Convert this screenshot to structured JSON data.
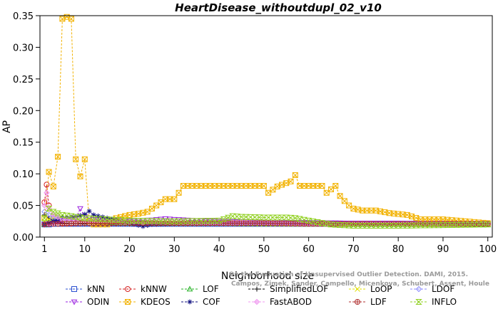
{
  "chart_data": {
    "type": "line",
    "title": "HeartDisease_withoutdupl_02_v10",
    "xlabel": "Neighborhood size",
    "ylabel": "AP",
    "xlim": [
      0,
      101
    ],
    "ylim": [
      0,
      0.35
    ],
    "xticks": [
      "1",
      "10",
      "20",
      "30",
      "40",
      "50",
      "60",
      "70",
      "80",
      "90",
      "100"
    ],
    "yticks": [
      "0.00",
      "0.05",
      "0.10",
      "0.15",
      "0.20",
      "0.25",
      "0.30",
      "0.35"
    ],
    "grid": false,
    "legend_position": "bottom",
    "credit_lines": [
      "Campos, Zimek, Sander, Campello, Micenkova, Schubert, Assent, Houle",
      "On the Evaluation of Unsupervised Outlier Detection. DAMI, 2015."
    ],
    "series": [
      {
        "name": "kNN",
        "color": "#2a4fd0",
        "marker": "square",
        "points": [
          [
            1,
            0.02
          ],
          [
            2,
            0.02
          ],
          [
            3,
            0.021
          ],
          [
            5,
            0.021
          ],
          [
            10,
            0.021
          ],
          [
            20,
            0.021
          ],
          [
            30,
            0.021
          ],
          [
            40,
            0.021
          ],
          [
            50,
            0.021
          ],
          [
            60,
            0.021
          ],
          [
            70,
            0.021
          ],
          [
            80,
            0.021
          ],
          [
            90,
            0.021
          ],
          [
            100,
            0.021
          ]
        ]
      },
      {
        "name": "kNNW",
        "color": "#d42020",
        "marker": "circle",
        "points": [
          [
            1,
            0.055
          ],
          [
            1.5,
            0.083
          ],
          [
            2,
            0.05
          ],
          [
            3,
            0.03
          ],
          [
            4,
            0.025
          ],
          [
            5,
            0.022
          ],
          [
            8,
            0.022
          ],
          [
            10,
            0.022
          ],
          [
            20,
            0.022
          ],
          [
            30,
            0.022
          ],
          [
            40,
            0.022
          ],
          [
            50,
            0.022
          ],
          [
            60,
            0.021
          ],
          [
            70,
            0.021
          ],
          [
            80,
            0.021
          ],
          [
            90,
            0.021
          ],
          [
            100,
            0.021
          ]
        ]
      },
      {
        "name": "LOF",
        "color": "#22b022",
        "marker": "triangle",
        "points": [
          [
            1,
            0.02
          ],
          [
            2,
            0.025
          ],
          [
            3,
            0.028
          ],
          [
            5,
            0.03
          ],
          [
            8,
            0.028
          ],
          [
            10,
            0.025
          ],
          [
            15,
            0.023
          ],
          [
            20,
            0.022
          ],
          [
            30,
            0.022
          ],
          [
            40,
            0.022
          ],
          [
            50,
            0.021
          ],
          [
            60,
            0.021
          ],
          [
            70,
            0.02
          ],
          [
            80,
            0.02
          ],
          [
            90,
            0.02
          ],
          [
            100,
            0.02
          ]
        ]
      },
      {
        "name": "SimplifiedLOF",
        "color": "#000000",
        "marker": "plus",
        "points": [
          [
            1,
            0.035
          ],
          [
            2,
            0.03
          ],
          [
            3,
            0.025
          ],
          [
            5,
            0.022
          ],
          [
            10,
            0.021
          ],
          [
            20,
            0.021
          ],
          [
            30,
            0.021
          ],
          [
            40,
            0.021
          ],
          [
            50,
            0.021
          ],
          [
            60,
            0.021
          ],
          [
            70,
            0.021
          ],
          [
            80,
            0.021
          ],
          [
            90,
            0.021
          ],
          [
            100,
            0.021
          ]
        ]
      },
      {
        "name": "LoOP",
        "color": "#e0e000",
        "marker": "cross",
        "points": [
          [
            1,
            0.025
          ],
          [
            2,
            0.028
          ],
          [
            3,
            0.03
          ],
          [
            5,
            0.028
          ],
          [
            10,
            0.025
          ],
          [
            20,
            0.023
          ],
          [
            30,
            0.022
          ],
          [
            40,
            0.022
          ],
          [
            50,
            0.021
          ],
          [
            60,
            0.021
          ],
          [
            70,
            0.021
          ],
          [
            80,
            0.021
          ],
          [
            90,
            0.021
          ],
          [
            100,
            0.021
          ]
        ]
      },
      {
        "name": "LDOF",
        "color": "#8888ff",
        "marker": "diamond",
        "points": [
          [
            1,
            0.04
          ],
          [
            2,
            0.035
          ],
          [
            3,
            0.03
          ],
          [
            5,
            0.028
          ],
          [
            10,
            0.025
          ],
          [
            20,
            0.024
          ],
          [
            30,
            0.023
          ],
          [
            40,
            0.022
          ],
          [
            50,
            0.022
          ],
          [
            60,
            0.022
          ],
          [
            70,
            0.021
          ],
          [
            80,
            0.021
          ],
          [
            90,
            0.021
          ],
          [
            100,
            0.021
          ]
        ]
      },
      {
        "name": "ODIN",
        "color": "#9a20e0",
        "marker": "triangle-down",
        "points": [
          [
            1,
            0.02
          ],
          [
            3,
            0.022
          ],
          [
            5,
            0.025
          ],
          [
            8,
            0.03
          ],
          [
            9,
            0.045
          ],
          [
            10,
            0.032
          ],
          [
            12,
            0.028
          ],
          [
            15,
            0.027
          ],
          [
            20,
            0.026
          ],
          [
            25,
            0.027
          ],
          [
            28,
            0.029
          ],
          [
            30,
            0.028
          ],
          [
            35,
            0.026
          ],
          [
            40,
            0.025
          ],
          [
            50,
            0.024
          ],
          [
            60,
            0.023
          ],
          [
            70,
            0.022
          ],
          [
            80,
            0.022
          ],
          [
            90,
            0.021
          ],
          [
            100,
            0.021
          ]
        ]
      },
      {
        "name": "KDEOS",
        "color": "#f2b200",
        "marker": "square-x",
        "points": [
          [
            1,
            0.03
          ],
          [
            2,
            0.103
          ],
          [
            3,
            0.08
          ],
          [
            4,
            0.127
          ],
          [
            5,
            0.345
          ],
          [
            6,
            0.348
          ],
          [
            7,
            0.345
          ],
          [
            8,
            0.123
          ],
          [
            9,
            0.096
          ],
          [
            10,
            0.123
          ],
          [
            11,
            0.025
          ],
          [
            12,
            0.02
          ],
          [
            15,
            0.02
          ],
          [
            17,
            0.03
          ],
          [
            20,
            0.035
          ],
          [
            22,
            0.037
          ],
          [
            24,
            0.04
          ],
          [
            26,
            0.05
          ],
          [
            28,
            0.06
          ],
          [
            30,
            0.06
          ],
          [
            31,
            0.07
          ],
          [
            32,
            0.081
          ],
          [
            35,
            0.081
          ],
          [
            40,
            0.081
          ],
          [
            45,
            0.081
          ],
          [
            50,
            0.081
          ],
          [
            51,
            0.07
          ],
          [
            53,
            0.08
          ],
          [
            56,
            0.088
          ],
          [
            57,
            0.098
          ],
          [
            58,
            0.081
          ],
          [
            60,
            0.081
          ],
          [
            63,
            0.081
          ],
          [
            64,
            0.07
          ],
          [
            66,
            0.081
          ],
          [
            67,
            0.065
          ],
          [
            68,
            0.057
          ],
          [
            69,
            0.05
          ],
          [
            70,
            0.045
          ],
          [
            72,
            0.042
          ],
          [
            75,
            0.042
          ],
          [
            78,
            0.038
          ],
          [
            82,
            0.035
          ],
          [
            85,
            0.028
          ],
          [
            90,
            0.028
          ],
          [
            95,
            0.025
          ],
          [
            100,
            0.022
          ]
        ]
      },
      {
        "name": "COF",
        "color": "#101080",
        "marker": "asterisk",
        "points": [
          [
            1,
            0.02
          ],
          [
            3,
            0.025
          ],
          [
            5,
            0.03
          ],
          [
            8,
            0.032
          ],
          [
            10,
            0.036
          ],
          [
            11,
            0.041
          ],
          [
            12,
            0.035
          ],
          [
            15,
            0.03
          ],
          [
            18,
            0.025
          ],
          [
            20,
            0.022
          ],
          [
            23,
            0.017
          ],
          [
            25,
            0.02
          ],
          [
            30,
            0.021
          ],
          [
            40,
            0.021
          ],
          [
            50,
            0.021
          ],
          [
            60,
            0.021
          ],
          [
            70,
            0.021
          ],
          [
            80,
            0.021
          ],
          [
            90,
            0.021
          ],
          [
            100,
            0.021
          ]
        ]
      },
      {
        "name": "FastABOD",
        "color": "#f09af0",
        "marker": "diamond-fill",
        "points": [
          [
            1,
            0.05
          ],
          [
            1.5,
            0.07
          ],
          [
            2,
            0.045
          ],
          [
            3,
            0.035
          ],
          [
            5,
            0.028
          ],
          [
            10,
            0.025
          ],
          [
            20,
            0.024
          ],
          [
            30,
            0.023
          ],
          [
            40,
            0.022
          ],
          [
            50,
            0.022
          ],
          [
            60,
            0.021
          ],
          [
            70,
            0.021
          ],
          [
            80,
            0.021
          ],
          [
            90,
            0.021
          ],
          [
            100,
            0.021
          ]
        ]
      },
      {
        "name": "LDF",
        "color": "#b03030",
        "marker": "circle-plus",
        "points": [
          [
            1,
            0.02
          ],
          [
            3,
            0.021
          ],
          [
            5,
            0.021
          ],
          [
            10,
            0.022
          ],
          [
            20,
            0.022
          ],
          [
            30,
            0.022
          ],
          [
            40,
            0.022
          ],
          [
            50,
            0.022
          ],
          [
            60,
            0.021
          ],
          [
            70,
            0.021
          ],
          [
            80,
            0.021
          ],
          [
            90,
            0.021
          ],
          [
            100,
            0.021
          ]
        ]
      },
      {
        "name": "INFLO",
        "color": "#90d020",
        "marker": "hourglass",
        "points": [
          [
            1,
            0.03
          ],
          [
            2,
            0.045
          ],
          [
            3,
            0.04
          ],
          [
            5,
            0.035
          ],
          [
            8,
            0.032
          ],
          [
            10,
            0.03
          ],
          [
            15,
            0.028
          ],
          [
            20,
            0.026
          ],
          [
            30,
            0.025
          ],
          [
            40,
            0.026
          ],
          [
            43,
            0.033
          ],
          [
            45,
            0.032
          ],
          [
            50,
            0.031
          ],
          [
            55,
            0.031
          ],
          [
            57,
            0.03
          ],
          [
            60,
            0.026
          ],
          [
            65,
            0.02
          ],
          [
            70,
            0.018
          ],
          [
            80,
            0.018
          ],
          [
            90,
            0.019
          ],
          [
            100,
            0.02
          ]
        ]
      }
    ]
  }
}
